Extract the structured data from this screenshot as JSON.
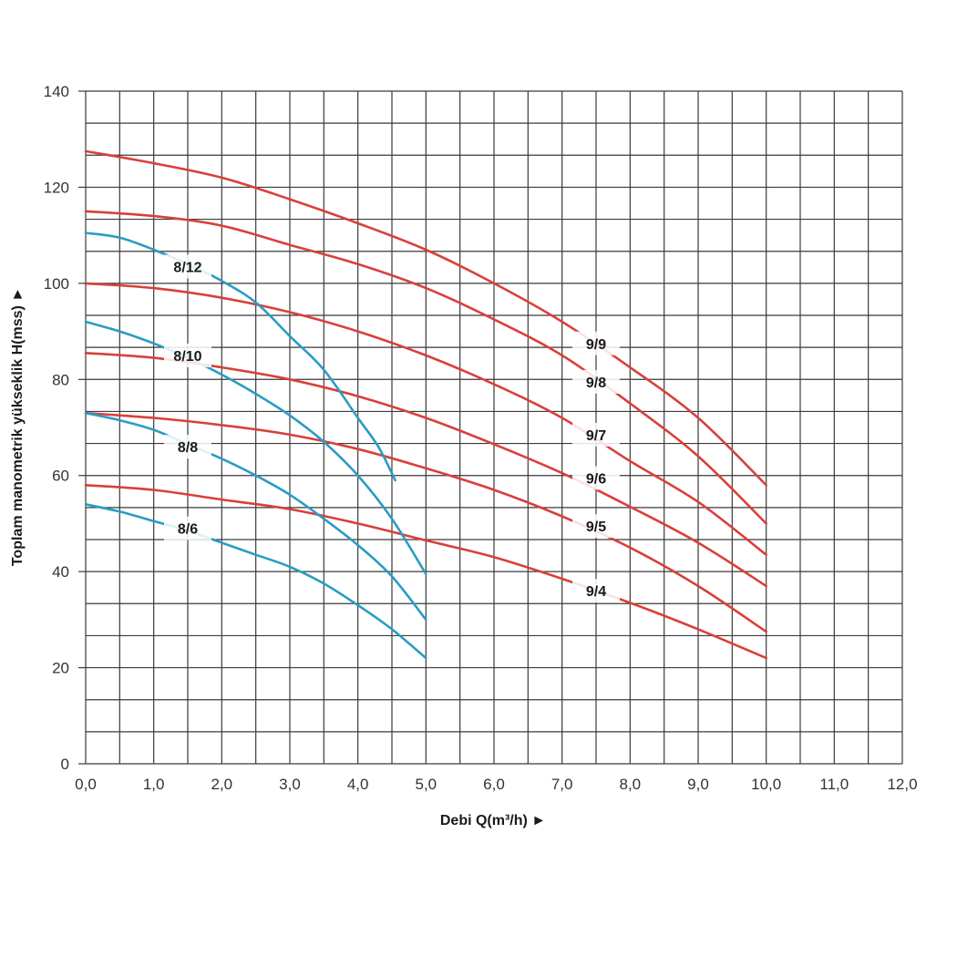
{
  "chart_data": {
    "type": "line",
    "xlabel": "Debi Q(m³/h) ►",
    "ylabel": "Toplam manometrik yükseklik H(mss) ►",
    "xlim": [
      0,
      12
    ],
    "ylim": [
      0,
      140
    ],
    "x_ticks": [
      "0,0",
      "1,0",
      "2,0",
      "3,0",
      "4,0",
      "5,0",
      "6,0",
      "7,0",
      "8,0",
      "9,0",
      "10,0",
      "11,0",
      "12,0"
    ],
    "y_ticks": [
      "0",
      "20",
      "40",
      "60",
      "80",
      "100",
      "120",
      "140"
    ],
    "grid": true,
    "colors": {
      "red": "#d9403a",
      "blue": "#2a9cc4",
      "grid": "#3a3a3a"
    },
    "series": [
      {
        "name": "9/9",
        "color": "red",
        "label_pos": [
          7.5,
          87.5
        ],
        "points": [
          [
            0,
            127.5
          ],
          [
            1,
            125
          ],
          [
            2,
            122
          ],
          [
            3,
            117.5
          ],
          [
            4,
            112.5
          ],
          [
            5,
            107
          ],
          [
            6,
            100
          ],
          [
            7,
            92
          ],
          [
            8,
            82.5
          ],
          [
            9,
            72
          ],
          [
            10,
            58
          ]
        ]
      },
      {
        "name": "9/8",
        "color": "red",
        "label_pos": [
          7.5,
          79.5
        ],
        "points": [
          [
            0,
            115
          ],
          [
            1,
            114
          ],
          [
            2,
            112
          ],
          [
            3,
            108
          ],
          [
            4,
            104
          ],
          [
            5,
            99
          ],
          [
            6,
            92.5
          ],
          [
            7,
            85
          ],
          [
            8,
            75
          ],
          [
            9,
            64
          ],
          [
            10,
            50
          ]
        ]
      },
      {
        "name": "9/7",
        "color": "red",
        "label_pos": [
          7.5,
          68.5
        ],
        "points": [
          [
            0,
            100
          ],
          [
            1,
            99
          ],
          [
            2,
            97
          ],
          [
            3,
            94
          ],
          [
            4,
            90
          ],
          [
            5,
            85
          ],
          [
            6,
            79
          ],
          [
            7,
            72
          ],
          [
            8,
            63
          ],
          [
            9,
            54.5
          ],
          [
            10,
            43.5
          ]
        ]
      },
      {
        "name": "9/6",
        "color": "red",
        "label_pos": [
          7.5,
          59.5
        ],
        "points": [
          [
            0,
            85.5
          ],
          [
            1,
            84.5
          ],
          [
            2,
            82.5
          ],
          [
            3,
            80
          ],
          [
            4,
            76.5
          ],
          [
            5,
            72
          ],
          [
            6,
            66.5
          ],
          [
            7,
            60.5
          ],
          [
            8,
            53.5
          ],
          [
            9,
            46
          ],
          [
            10,
            37
          ]
        ]
      },
      {
        "name": "9/5",
        "color": "red",
        "label_pos": [
          7.5,
          49.5
        ],
        "points": [
          [
            0,
            73
          ],
          [
            1,
            72
          ],
          [
            2,
            70.5
          ],
          [
            3,
            68.5
          ],
          [
            4,
            65.5
          ],
          [
            5,
            61.5
          ],
          [
            6,
            57
          ],
          [
            7,
            51.5
          ],
          [
            8,
            45
          ],
          [
            9,
            37
          ],
          [
            10,
            27.5
          ]
        ]
      },
      {
        "name": "9/4",
        "color": "red",
        "label_pos": [
          7.5,
          36
        ],
        "points": [
          [
            0,
            58
          ],
          [
            1,
            57
          ],
          [
            2,
            55
          ],
          [
            3,
            53
          ],
          [
            4,
            50
          ],
          [
            5,
            46.5
          ],
          [
            6,
            43
          ],
          [
            7,
            38.5
          ],
          [
            8,
            33.5
          ],
          [
            9,
            28
          ],
          [
            10,
            22
          ]
        ]
      },
      {
        "name": "8/12",
        "color": "blue",
        "label_pos": [
          1.5,
          103.5
        ],
        "points": [
          [
            0,
            110.5
          ],
          [
            0.5,
            109.5
          ],
          [
            1,
            107
          ],
          [
            1.5,
            104
          ],
          [
            2,
            100.5
          ],
          [
            2.5,
            96
          ],
          [
            3,
            89
          ],
          [
            3.5,
            82
          ],
          [
            4,
            72
          ],
          [
            4.3,
            66
          ],
          [
            4.55,
            59
          ]
        ]
      },
      {
        "name": "8/10",
        "color": "blue",
        "label_pos": [
          1.5,
          85
        ],
        "points": [
          [
            0,
            92
          ],
          [
            0.5,
            90
          ],
          [
            1,
            87.5
          ],
          [
            1.5,
            84.5
          ],
          [
            2,
            81
          ],
          [
            2.5,
            77
          ],
          [
            3,
            72.5
          ],
          [
            3.5,
            67
          ],
          [
            4,
            60
          ],
          [
            4.5,
            51
          ],
          [
            5,
            39.5
          ]
        ]
      },
      {
        "name": "8/8",
        "color": "blue",
        "label_pos": [
          1.5,
          66
        ],
        "points": [
          [
            0,
            73
          ],
          [
            0.5,
            71.5
          ],
          [
            1,
            69.5
          ],
          [
            1.5,
            66.5
          ],
          [
            2,
            63.5
          ],
          [
            2.5,
            60
          ],
          [
            3,
            56
          ],
          [
            3.5,
            51
          ],
          [
            4,
            45.5
          ],
          [
            4.5,
            39
          ],
          [
            5,
            30
          ]
        ]
      },
      {
        "name": "8/6",
        "color": "blue",
        "label_pos": [
          1.5,
          49
        ],
        "points": [
          [
            0,
            54
          ],
          [
            0.5,
            52.5
          ],
          [
            1,
            50.5
          ],
          [
            1.5,
            48.5
          ],
          [
            2,
            46
          ],
          [
            2.5,
            43.5
          ],
          [
            3,
            41
          ],
          [
            3.5,
            37.5
          ],
          [
            4,
            33
          ],
          [
            4.5,
            28
          ],
          [
            5,
            22
          ]
        ]
      }
    ]
  }
}
